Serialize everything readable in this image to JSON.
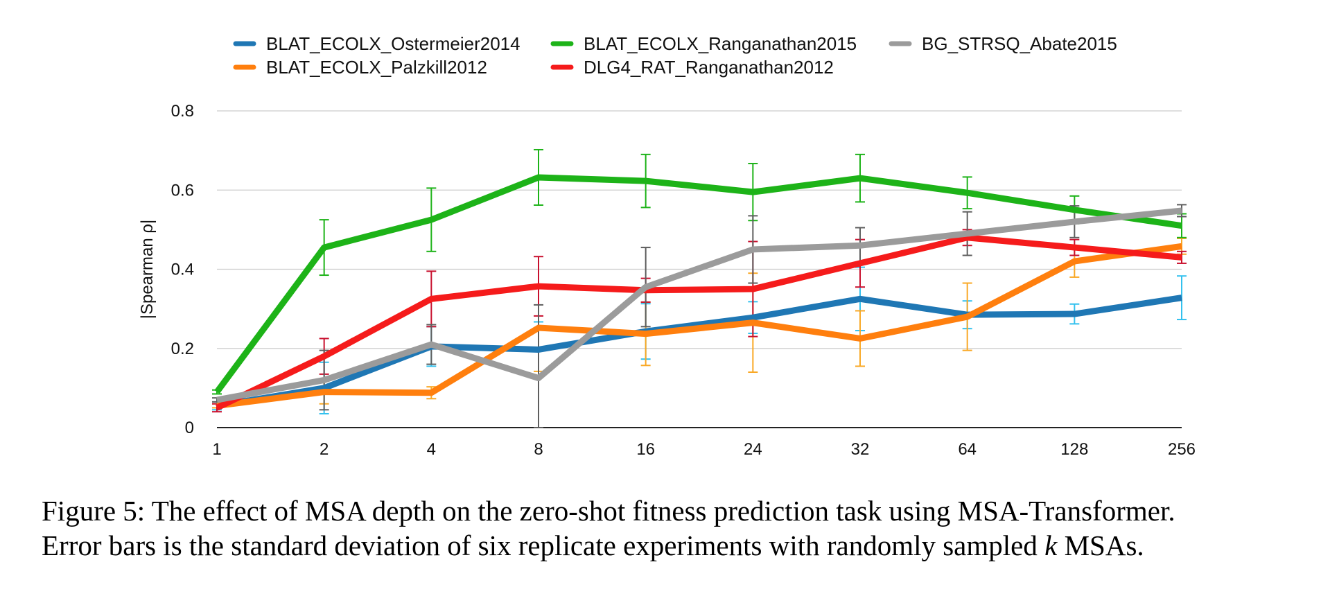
{
  "chart_data": {
    "type": "line",
    "title": "",
    "xlabel": "",
    "ylabel": "|Spearman ρ|",
    "ylim": [
      0,
      0.8
    ],
    "yticks": [
      0,
      0.2,
      0.4,
      0.6,
      0.8
    ],
    "ytick_labels": [
      "0",
      "0.2",
      "0.4",
      "0.6",
      "0.8"
    ],
    "categories": [
      "1",
      "2",
      "4",
      "8",
      "16",
      "24",
      "32",
      "64",
      "128",
      "256"
    ],
    "grid": true,
    "legend_position": "top",
    "series": [
      {
        "name": "BLAT_ECOLX_Ostermeier2014",
        "color": "#1f77b4",
        "error_color": "#33c1ee",
        "values": [
          0.055,
          0.1,
          0.205,
          0.197,
          0.243,
          0.278,
          0.325,
          0.285,
          0.287,
          0.328
        ],
        "errors": [
          0.01,
          0.065,
          0.05,
          0.07,
          0.07,
          0.04,
          0.08,
          0.035,
          0.025,
          0.055
        ]
      },
      {
        "name": "BLAT_ECOLX_Palzkill2012",
        "color": "#ff7f0e",
        "error_color": "#f9a825",
        "values": [
          0.055,
          0.09,
          0.088,
          0.252,
          0.237,
          0.265,
          0.225,
          0.28,
          0.42,
          0.458
        ],
        "errors": [
          0.005,
          0.03,
          0.015,
          0.11,
          0.08,
          0.125,
          0.07,
          0.085,
          0.04,
          0.02
        ]
      },
      {
        "name": "BLAT_ECOLX_Ranganathan2015",
        "color": "#1db318",
        "error_color": "#1db318",
        "values": [
          0.09,
          0.455,
          0.525,
          0.632,
          0.623,
          0.595,
          0.63,
          0.593,
          0.55,
          0.51
        ],
        "errors": [
          0.005,
          0.07,
          0.08,
          0.07,
          0.067,
          0.072,
          0.06,
          0.04,
          0.035,
          0.03
        ]
      },
      {
        "name": "DLG4_RAT_Ranganathan2012",
        "color": "#f51b1b",
        "error_color": "#c8102e",
        "values": [
          0.05,
          0.18,
          0.325,
          0.357,
          0.347,
          0.35,
          0.415,
          0.48,
          0.455,
          0.43
        ],
        "errors": [
          0.01,
          0.045,
          0.07,
          0.075,
          0.03,
          0.12,
          0.06,
          0.02,
          0.02,
          0.015
        ]
      },
      {
        "name": "BG_STRSQ_Abate2015",
        "color": "#9b9b9b",
        "error_color": "#5e5e5e",
        "values": [
          0.07,
          0.12,
          0.21,
          0.125,
          0.355,
          0.45,
          0.46,
          0.49,
          0.52,
          0.548
        ],
        "errors": [
          0.005,
          0.075,
          0.05,
          0.185,
          0.1,
          0.085,
          0.045,
          0.055,
          0.04,
          0.015
        ]
      }
    ]
  },
  "caption": {
    "line1": "Figure 5: The effect of MSA depth on the zero-shot fitness prediction task using MSA-Transformer.",
    "line2_pre": "Error bars is the standard deviation of six replicate experiments with randomly sampled ",
    "line2_var": "k",
    "line2_post": " MSAs."
  }
}
